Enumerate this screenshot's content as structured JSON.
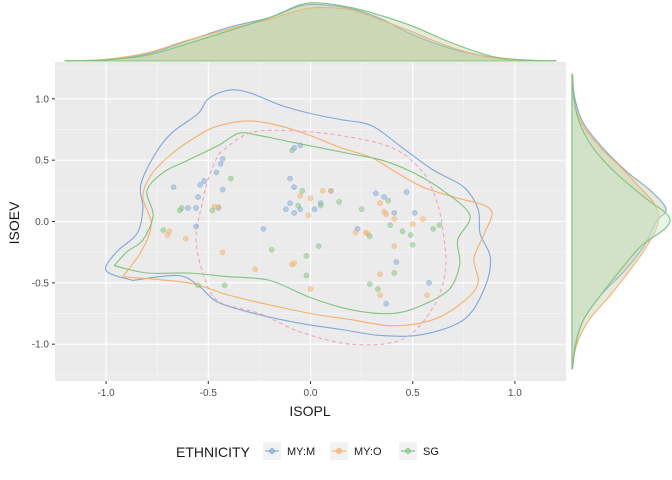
{
  "chart_data": {
    "type": "scatter",
    "xlabel": "ISOPL",
    "ylabel": "ISOEV",
    "xlim": [
      -1.25,
      1.25
    ],
    "ylim": [
      -1.3,
      1.3
    ],
    "xticks": [
      -1.0,
      -0.5,
      0.0,
      0.5,
      1.0
    ],
    "yticks": [
      -1.0,
      -0.5,
      0.0,
      0.5,
      1.0
    ],
    "xtick_labels": [
      "-1.0",
      "-0.5",
      "0.0",
      "0.5",
      "1.0"
    ],
    "ytick_labels": [
      "-1.0",
      "-0.5",
      "0.0",
      "0.5",
      "1.0"
    ],
    "grid": true,
    "legend": {
      "title": "ETHNICITY",
      "position": "bottom",
      "entries": [
        "MY:M",
        "MY:O",
        "SG"
      ]
    },
    "series": [
      {
        "name": "MY:M",
        "color": "#7fa7d9",
        "points": [
          [
            -0.67,
            0.28
          ],
          [
            -0.54,
            0.3
          ],
          [
            -0.52,
            0.33
          ],
          [
            -0.46,
            0.4
          ],
          [
            -0.44,
            0.47
          ],
          [
            -0.43,
            0.51
          ],
          [
            -0.43,
            0.26
          ],
          [
            -0.55,
            0.2
          ],
          [
            -0.6,
            0.11
          ],
          [
            -0.56,
            0.11
          ],
          [
            -0.56,
            -0.04
          ],
          [
            -0.45,
            0.11
          ],
          [
            -0.1,
            0.35
          ],
          [
            -0.08,
            0.28
          ],
          [
            -0.1,
            0.15
          ],
          [
            -0.05,
            0.1
          ],
          [
            -0.08,
            0.07
          ],
          [
            -0.12,
            0.1
          ],
          [
            -0.08,
            0.6
          ],
          [
            -0.05,
            0.62
          ],
          [
            -0.23,
            -0.06
          ],
          [
            0.1,
            0.25
          ],
          [
            0.02,
            0.1
          ],
          [
            0.05,
            0.15
          ],
          [
            0.23,
            -0.06
          ],
          [
            0.32,
            0.23
          ],
          [
            0.36,
            0.2
          ],
          [
            0.41,
            0.07
          ],
          [
            0.47,
            0.24
          ],
          [
            0.51,
            0.07
          ],
          [
            0.37,
            -0.67
          ],
          [
            0.58,
            -0.5
          ],
          [
            0.42,
            -0.33
          ]
        ]
      },
      {
        "name": "MY:O",
        "color": "#f5b167",
        "points": [
          [
            -0.7,
            -0.11
          ],
          [
            -0.69,
            -0.08
          ],
          [
            -0.61,
            -0.14
          ],
          [
            -0.47,
            0.12
          ],
          [
            -0.45,
            0.12
          ],
          [
            -0.43,
            -0.25
          ],
          [
            -0.05,
            0.21
          ],
          [
            0.0,
            0.19
          ],
          [
            -0.01,
            0.05
          ],
          [
            0.06,
            0.25
          ],
          [
            0.1,
            0.25
          ],
          [
            0.34,
            0.15
          ],
          [
            0.36,
            0.08
          ],
          [
            0.37,
            0.06
          ],
          [
            0.41,
            0.02
          ],
          [
            0.5,
            -0.02
          ],
          [
            0.55,
            0.02
          ],
          [
            0.27,
            -0.09
          ],
          [
            0.28,
            -0.1
          ],
          [
            0.34,
            -0.43
          ],
          [
            0.34,
            -0.6
          ],
          [
            0.22,
            -0.09
          ],
          [
            -0.27,
            -0.39
          ],
          [
            -0.09,
            -0.35
          ],
          [
            0.0,
            -0.55
          ],
          [
            0.41,
            -0.2
          ],
          [
            0.57,
            -0.6
          ],
          [
            -0.08,
            -0.34
          ]
        ]
      },
      {
        "name": "SG",
        "color": "#7fc47f",
        "points": [
          [
            -0.64,
            0.09
          ],
          [
            -0.63,
            0.11
          ],
          [
            -0.48,
            0.09
          ],
          [
            -0.39,
            0.35
          ],
          [
            -0.09,
            0.58
          ],
          [
            -0.06,
            0.13
          ],
          [
            -0.04,
            0.25
          ],
          [
            0.05,
            0.13
          ],
          [
            0.14,
            0.16
          ],
          [
            0.25,
            0.1
          ],
          [
            0.29,
            -0.12
          ],
          [
            0.38,
            0.17
          ],
          [
            0.39,
            -0.03
          ],
          [
            0.45,
            -0.08
          ],
          [
            0.5,
            -0.19
          ],
          [
            0.6,
            -0.06
          ],
          [
            0.63,
            -0.03
          ],
          [
            0.33,
            -0.55
          ],
          [
            0.41,
            -0.42
          ],
          [
            0.49,
            -0.11
          ],
          [
            0.04,
            -0.2
          ],
          [
            -0.02,
            -0.44
          ],
          [
            -0.19,
            -0.23
          ],
          [
            -0.72,
            -0.07
          ],
          [
            -0.55,
            -0.52
          ],
          [
            -0.42,
            -0.52
          ],
          [
            0.29,
            -0.51
          ],
          [
            -0.02,
            -0.28
          ]
        ]
      }
    ]
  },
  "contours": [
    {
      "name": "MY:M",
      "style": "solid",
      "points": [
        [
          -0.87,
          -0.48
        ],
        [
          -1.0,
          -0.4
        ],
        [
          -0.95,
          -0.25
        ],
        [
          -0.85,
          -0.1
        ],
        [
          -0.82,
          0.1
        ],
        [
          -0.83,
          0.3
        ],
        [
          -0.76,
          0.55
        ],
        [
          -0.68,
          0.72
        ],
        [
          -0.55,
          0.88
        ],
        [
          -0.5,
          1.0
        ],
        [
          -0.4,
          1.07
        ],
        [
          -0.3,
          1.05
        ],
        [
          -0.15,
          0.95
        ],
        [
          0.0,
          0.88
        ],
        [
          0.15,
          0.83
        ],
        [
          0.3,
          0.78
        ],
        [
          0.45,
          0.6
        ],
        [
          0.6,
          0.42
        ],
        [
          0.75,
          0.28
        ],
        [
          0.82,
          0.1
        ],
        [
          0.83,
          -0.1
        ],
        [
          0.88,
          -0.3
        ],
        [
          0.85,
          -0.55
        ],
        [
          0.75,
          -0.8
        ],
        [
          0.55,
          -0.92
        ],
        [
          0.35,
          -0.93
        ],
        [
          0.15,
          -0.88
        ],
        [
          -0.05,
          -0.83
        ],
        [
          -0.25,
          -0.76
        ],
        [
          -0.45,
          -0.66
        ],
        [
          -0.55,
          -0.52
        ],
        [
          -0.65,
          -0.44
        ],
        [
          -0.87,
          -0.48
        ]
      ]
    },
    {
      "name": "MY:O",
      "style": "solid",
      "points": [
        [
          -0.92,
          -0.45
        ],
        [
          -0.85,
          -0.3
        ],
        [
          -0.8,
          -0.15
        ],
        [
          -0.78,
          0.0
        ],
        [
          -0.82,
          0.2
        ],
        [
          -0.78,
          0.38
        ],
        [
          -0.68,
          0.55
        ],
        [
          -0.55,
          0.7
        ],
        [
          -0.45,
          0.78
        ],
        [
          -0.3,
          0.82
        ],
        [
          -0.15,
          0.78
        ],
        [
          0.0,
          0.7
        ],
        [
          0.15,
          0.6
        ],
        [
          0.3,
          0.52
        ],
        [
          0.42,
          0.4
        ],
        [
          0.55,
          0.28
        ],
        [
          0.7,
          0.2
        ],
        [
          0.88,
          0.1
        ],
        [
          0.85,
          -0.1
        ],
        [
          0.8,
          -0.3
        ],
        [
          0.82,
          -0.5
        ],
        [
          0.75,
          -0.65
        ],
        [
          0.6,
          -0.8
        ],
        [
          0.4,
          -0.85
        ],
        [
          0.2,
          -0.8
        ],
        [
          0.0,
          -0.75
        ],
        [
          -0.2,
          -0.68
        ],
        [
          -0.4,
          -0.6
        ],
        [
          -0.6,
          -0.5
        ],
        [
          -0.92,
          -0.45
        ]
      ]
    },
    {
      "name": "SG",
      "style": "solid",
      "points": [
        [
          -0.96,
          -0.36
        ],
        [
          -0.9,
          -0.25
        ],
        [
          -0.82,
          -0.15
        ],
        [
          -0.77,
          0.05
        ],
        [
          -0.8,
          0.25
        ],
        [
          -0.72,
          0.4
        ],
        [
          -0.6,
          0.5
        ],
        [
          -0.45,
          0.62
        ],
        [
          -0.35,
          0.72
        ],
        [
          -0.25,
          0.7
        ],
        [
          -0.1,
          0.65
        ],
        [
          0.05,
          0.6
        ],
        [
          0.2,
          0.55
        ],
        [
          0.35,
          0.5
        ],
        [
          0.5,
          0.4
        ],
        [
          0.65,
          0.25
        ],
        [
          0.78,
          0.05
        ],
        [
          0.72,
          -0.15
        ],
        [
          0.73,
          -0.35
        ],
        [
          0.68,
          -0.55
        ],
        [
          0.55,
          -0.68
        ],
        [
          0.4,
          -0.75
        ],
        [
          0.2,
          -0.72
        ],
        [
          0.0,
          -0.62
        ],
        [
          -0.2,
          -0.48
        ],
        [
          -0.4,
          -0.45
        ],
        [
          -0.6,
          -0.42
        ],
        [
          -0.8,
          -0.42
        ],
        [
          -0.96,
          -0.36
        ]
      ]
    },
    {
      "name": "inner",
      "style": "dashed",
      "color": "#f2a3bf",
      "points": [
        [
          -0.45,
          0.55
        ],
        [
          -0.3,
          0.72
        ],
        [
          -0.1,
          0.74
        ],
        [
          0.15,
          0.7
        ],
        [
          0.4,
          0.6
        ],
        [
          0.55,
          0.4
        ],
        [
          0.62,
          0.15
        ],
        [
          0.65,
          -0.1
        ],
        [
          0.66,
          -0.4
        ],
        [
          0.6,
          -0.7
        ],
        [
          0.45,
          -0.96
        ],
        [
          0.2,
          -1.0
        ],
        [
          -0.05,
          -0.9
        ],
        [
          -0.25,
          -0.75
        ],
        [
          -0.45,
          -0.65
        ],
        [
          -0.52,
          -0.45
        ],
        [
          -0.56,
          -0.15
        ],
        [
          -0.53,
          0.15
        ],
        [
          -0.5,
          0.35
        ],
        [
          -0.45,
          0.55
        ]
      ]
    }
  ],
  "marginal_x": [
    {
      "name": "MY:M",
      "values": [
        [
          -1.2,
          0.005
        ],
        [
          -1.0,
          0.02
        ],
        [
          -0.8,
          0.12
        ],
        [
          -0.6,
          0.35
        ],
        [
          -0.4,
          0.58
        ],
        [
          -0.2,
          0.75
        ],
        [
          -0.05,
          0.95
        ],
        [
          0.05,
          0.97
        ],
        [
          0.2,
          0.9
        ],
        [
          0.35,
          0.72
        ],
        [
          0.5,
          0.45
        ],
        [
          0.7,
          0.2
        ],
        [
          0.9,
          0.06
        ],
        [
          1.1,
          0.01
        ],
        [
          1.2,
          0.005
        ]
      ]
    },
    {
      "name": "MY:O",
      "values": [
        [
          -1.2,
          0.005
        ],
        [
          -1.0,
          0.03
        ],
        [
          -0.8,
          0.14
        ],
        [
          -0.6,
          0.36
        ],
        [
          -0.4,
          0.55
        ],
        [
          -0.2,
          0.72
        ],
        [
          -0.05,
          0.88
        ],
        [
          0.05,
          0.92
        ],
        [
          0.2,
          0.88
        ],
        [
          0.35,
          0.7
        ],
        [
          0.5,
          0.5
        ],
        [
          0.7,
          0.22
        ],
        [
          0.9,
          0.05
        ],
        [
          1.1,
          0.008
        ],
        [
          1.2,
          0.004
        ]
      ]
    },
    {
      "name": "SG",
      "values": [
        [
          -1.2,
          0.005
        ],
        [
          -1.0,
          0.02
        ],
        [
          -0.8,
          0.1
        ],
        [
          -0.6,
          0.3
        ],
        [
          -0.4,
          0.52
        ],
        [
          -0.2,
          0.75
        ],
        [
          -0.05,
          0.97
        ],
        [
          0.05,
          1.0
        ],
        [
          0.2,
          0.92
        ],
        [
          0.35,
          0.78
        ],
        [
          0.5,
          0.6
        ],
        [
          0.7,
          0.3
        ],
        [
          0.9,
          0.07
        ],
        [
          1.1,
          0.01
        ],
        [
          1.2,
          0.004
        ]
      ]
    }
  ],
  "marginal_y": [
    {
      "name": "MY:M",
      "values": [
        [
          -1.2,
          0.005
        ],
        [
          -1.0,
          0.03
        ],
        [
          -0.8,
          0.12
        ],
        [
          -0.6,
          0.3
        ],
        [
          -0.4,
          0.55
        ],
        [
          -0.2,
          0.75
        ],
        [
          0.0,
          0.88
        ],
        [
          0.1,
          0.98
        ],
        [
          0.25,
          0.82
        ],
        [
          0.4,
          0.58
        ],
        [
          0.6,
          0.32
        ],
        [
          0.8,
          0.12
        ],
        [
          1.0,
          0.03
        ],
        [
          1.2,
          0.005
        ]
      ]
    },
    {
      "name": "MY:O",
      "values": [
        [
          -1.2,
          0.005
        ],
        [
          -1.0,
          0.05
        ],
        [
          -0.8,
          0.18
        ],
        [
          -0.6,
          0.4
        ],
        [
          -0.4,
          0.6
        ],
        [
          -0.2,
          0.78
        ],
        [
          0.0,
          0.9
        ],
        [
          0.15,
          0.85
        ],
        [
          0.3,
          0.68
        ],
        [
          0.45,
          0.5
        ],
        [
          0.6,
          0.3
        ],
        [
          0.8,
          0.1
        ],
        [
          1.0,
          0.02
        ],
        [
          1.2,
          0.005
        ]
      ]
    },
    {
      "name": "SG",
      "values": [
        [
          -1.2,
          0.005
        ],
        [
          -1.0,
          0.04
        ],
        [
          -0.8,
          0.12
        ],
        [
          -0.6,
          0.3
        ],
        [
          -0.4,
          0.5
        ],
        [
          -0.2,
          0.72
        ],
        [
          -0.05,
          0.98
        ],
        [
          0.05,
          1.0
        ],
        [
          0.2,
          0.75
        ],
        [
          0.4,
          0.45
        ],
        [
          0.6,
          0.22
        ],
        [
          0.8,
          0.08
        ],
        [
          1.0,
          0.02
        ],
        [
          1.2,
          0.005
        ]
      ]
    }
  ]
}
